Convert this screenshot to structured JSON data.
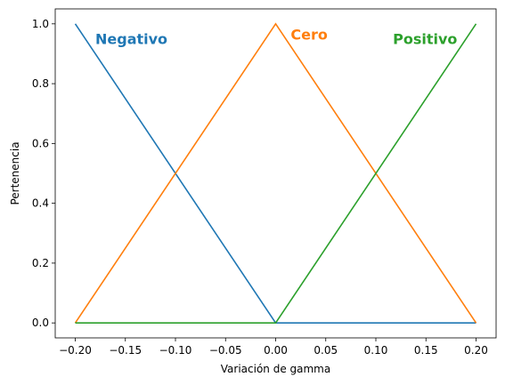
{
  "chart_data": {
    "type": "line",
    "title": "",
    "xlabel": "Variación de gamma",
    "ylabel": "Pertenencia",
    "xlim": [
      -0.22,
      0.22
    ],
    "ylim": [
      -0.05,
      1.05
    ],
    "grid": false,
    "legend": "none",
    "x_ticks": [
      -0.2,
      -0.15,
      -0.1,
      -0.05,
      0.0,
      0.05,
      0.1,
      0.15,
      0.2
    ],
    "x_tick_labels": [
      "−0.20",
      "−0.15",
      "−0.10",
      "−0.05",
      "0.00",
      "0.05",
      "0.10",
      "0.15",
      "0.20"
    ],
    "y_ticks": [
      0.0,
      0.2,
      0.4,
      0.6,
      0.8,
      1.0
    ],
    "y_tick_labels": [
      "0.0",
      "0.2",
      "0.4",
      "0.6",
      "0.8",
      "1.0"
    ],
    "series": [
      {
        "name": "Negativo",
        "color": "#1f77b4",
        "x": [
          -0.2,
          0.0,
          0.2
        ],
        "y": [
          1.0,
          0.0,
          0.0
        ],
        "label_at": [
          -0.18,
          0.95
        ]
      },
      {
        "name": "Cero",
        "color": "#ff7f0e",
        "x": [
          -0.2,
          0.0,
          0.2
        ],
        "y": [
          0.0,
          1.0,
          0.0
        ],
        "label_at": [
          0.015,
          0.965
        ]
      },
      {
        "name": "Positivo",
        "color": "#2ca02c",
        "x": [
          -0.2,
          0.0,
          0.2
        ],
        "y": [
          0.0,
          0.0,
          1.0
        ],
        "label_at": [
          0.117,
          0.95
        ]
      }
    ]
  }
}
